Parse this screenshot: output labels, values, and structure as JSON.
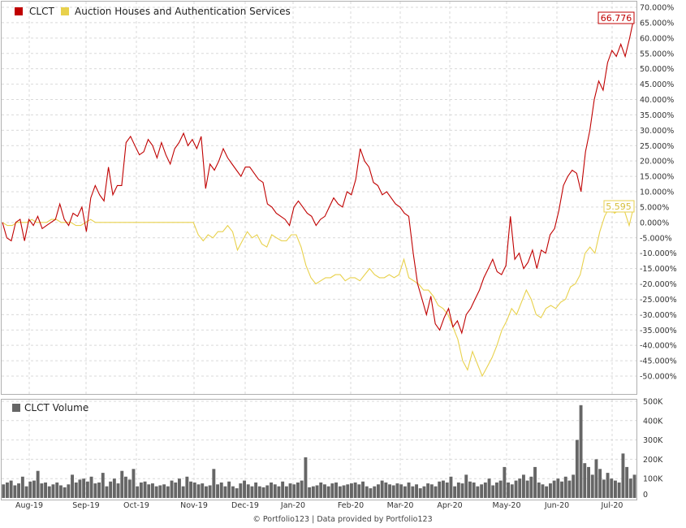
{
  "colors": {
    "clct": "#c00000",
    "auction": "#e8d14c",
    "volume": "#666666"
  },
  "legend": {
    "series1": "CLCT",
    "series2": "Auction Houses and Authentication Services",
    "volume": "CLCT Volume"
  },
  "footer": "© Portfolio123 | Data provided by Portfolio123",
  "chart_data": [
    {
      "type": "line",
      "x_labels": [
        "Aug-19",
        "Sep-19",
        "Oct-19",
        "Nov-19",
        "Dec-19",
        "Jan-20",
        "Feb-20",
        "Mar-20",
        "Apr-20",
        "May-20",
        "Jun-20",
        "Jul-20"
      ],
      "ylim": [
        -50,
        70
      ],
      "y_ticks": [
        "70.000%",
        "65.000%",
        "60.000%",
        "55.000%",
        "50.000%",
        "45.000%",
        "40.000%",
        "35.000%",
        "30.000%",
        "25.000%",
        "20.000%",
        "15.000%",
        "10.000%",
        "5.000%",
        "0.000%",
        "-5.000%",
        "-10.000%",
        "-15.000%",
        "-20.000%",
        "-25.000%",
        "-30.000%",
        "-35.000%",
        "-40.000%",
        "-45.000%",
        "-50.000%"
      ],
      "grid": true,
      "legend_position": "top-left",
      "series": [
        {
          "name": "CLCT",
          "end_label": "66.776",
          "values": [
            0,
            -5,
            -6,
            0,
            1,
            -6,
            1,
            -1,
            2,
            -2,
            -1,
            0,
            1,
            6,
            1,
            -1,
            3,
            2,
            5,
            -3,
            8,
            12,
            9,
            7,
            18,
            9,
            12,
            12,
            26,
            28,
            25,
            22,
            23,
            27,
            25,
            21,
            26,
            22,
            19,
            24,
            26,
            29,
            25,
            27,
            24,
            28,
            11,
            19,
            17,
            20,
            24,
            21,
            19,
            17,
            15,
            18,
            18,
            16,
            14,
            13,
            6,
            5,
            3,
            2,
            1,
            -1,
            5,
            7,
            5,
            3,
            2,
            -1,
            1,
            2,
            5,
            8,
            6,
            5,
            10,
            9,
            14,
            24,
            20,
            18,
            13,
            12,
            9,
            10,
            8,
            6,
            5,
            3,
            2,
            -10,
            -20,
            -25,
            -30,
            -24,
            -33,
            -35,
            -31,
            -28,
            -34,
            -32,
            -36,
            -30,
            -28,
            -25,
            -22,
            -18,
            -15,
            -12,
            -16,
            -17,
            -14,
            2,
            -12,
            -10,
            -15,
            -13,
            -9,
            -15,
            -9,
            -10,
            -4,
            -2,
            4,
            12,
            15,
            17,
            16,
            10,
            23,
            30,
            40,
            46,
            43,
            52,
            56,
            54,
            58,
            54,
            60,
            66.776
          ]
        },
        {
          "name": "Auction Houses and Authentication Services",
          "end_label": "5.595",
          "values": [
            0,
            -1,
            -1,
            0,
            0,
            0,
            1,
            0,
            0,
            0,
            1,
            1,
            0,
            0,
            0,
            -1,
            -1,
            0,
            1,
            0,
            0,
            0,
            0,
            0,
            0,
            0,
            0,
            0,
            0,
            0,
            0,
            0,
            0,
            0,
            0,
            0,
            0,
            0,
            0,
            0,
            -4,
            -6,
            -4,
            -5,
            -3,
            -3,
            -1,
            -3,
            -9,
            -6,
            -3,
            -5,
            -4,
            -7,
            -8,
            -4,
            -5,
            -6,
            -6,
            -4,
            -4,
            -8,
            -14,
            -18,
            -20,
            -19,
            -18,
            -18,
            -17,
            -17,
            -19,
            -18,
            -18,
            -19,
            -17,
            -15,
            -17,
            -18,
            -18,
            -17,
            -18,
            -17,
            -12,
            -18,
            -19,
            -20,
            -22,
            -22,
            -24,
            -27,
            -28,
            -30,
            -34,
            -38,
            -45,
            -48,
            -42,
            -46,
            -50,
            -47,
            -44,
            -40,
            -35,
            -32,
            -28,
            -30,
            -26,
            -22,
            -25,
            -30,
            -31,
            -28,
            -27,
            -28,
            -26,
            -25,
            -21,
            -20,
            -17,
            -10,
            -8,
            -10,
            -3,
            2,
            5,
            3,
            4,
            4,
            -1,
            5.595
          ]
        },
        {
          "name": "CLCT Volume",
          "ylim": [
            0,
            500000
          ],
          "y_ticks": [
            "500K",
            "400K",
            "300K",
            "200K",
            "100K",
            "0"
          ],
          "values": [
            70000,
            80000,
            90000,
            65000,
            75000,
            110000,
            60000,
            85000,
            90000,
            140000,
            75000,
            80000,
            60000,
            70000,
            80000,
            65000,
            55000,
            70000,
            120000,
            80000,
            95000,
            100000,
            85000,
            110000,
            75000,
            80000,
            130000,
            60000,
            85000,
            100000,
            75000,
            140000,
            110000,
            95000,
            150000,
            60000,
            80000,
            85000,
            70000,
            75000,
            60000,
            65000,
            70000,
            60000,
            90000,
            80000,
            100000,
            60000,
            110000,
            85000,
            80000,
            70000,
            75000,
            60000,
            65000,
            150000,
            70000,
            80000,
            60000,
            85000,
            60000,
            50000,
            75000,
            90000,
            70000,
            60000,
            80000,
            60000,
            55000,
            65000,
            80000,
            70000,
            60000,
            85000,
            60000,
            75000,
            70000,
            80000,
            90000,
            210000,
            55000,
            60000,
            65000,
            80000,
            70000,
            60000,
            75000,
            80000,
            60000,
            65000,
            70000,
            75000,
            80000,
            70000,
            85000,
            60000,
            50000,
            60000,
            70000,
            90000,
            80000,
            70000,
            65000,
            75000,
            70000,
            60000,
            80000,
            60000,
            70000,
            50000,
            60000,
            75000,
            70000,
            60000,
            85000,
            90000,
            80000,
            110000,
            60000,
            80000,
            75000,
            120000,
            85000,
            80000,
            60000,
            70000,
            80000,
            100000,
            65000,
            80000,
            90000,
            160000,
            80000,
            70000,
            90000,
            100000,
            120000,
            90000,
            110000,
            160000,
            80000,
            70000,
            60000,
            75000,
            90000,
            100000,
            85000,
            110000,
            90000,
            120000,
            300000,
            480000,
            180000,
            160000,
            120000,
            200000,
            150000,
            95000,
            130000,
            100000,
            90000,
            80000,
            230000,
            160000,
            100000,
            120000
          ]
        }
      ]
    }
  ]
}
